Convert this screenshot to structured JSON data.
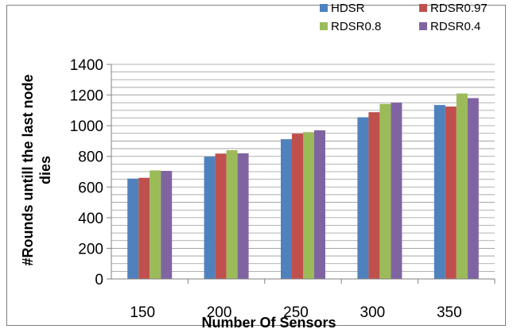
{
  "chart_data": {
    "type": "bar",
    "title": "",
    "xlabel": "Number Of Sensors",
    "ylabel_line1": "#Rounds untill the last node",
    "ylabel_line2": "dies",
    "categories": [
      "150",
      "200",
      "250",
      "300",
      "350"
    ],
    "series": [
      {
        "name": "HDSR",
        "color": "#4f81bd",
        "values": [
          655,
          798,
          912,
          1055,
          1135
        ]
      },
      {
        "name": "RDSR0.97",
        "color": "#c0504d",
        "values": [
          660,
          818,
          948,
          1088,
          1125
        ]
      },
      {
        "name": "RDSR0.8",
        "color": "#9bbb59",
        "values": [
          708,
          840,
          958,
          1142,
          1210
        ]
      },
      {
        "name": "RDSR0.4",
        "color": "#8064a2",
        "values": [
          705,
          820,
          970,
          1150,
          1180
        ]
      }
    ],
    "ylim": [
      0,
      1400
    ],
    "yticks": [
      0,
      200,
      400,
      600,
      800,
      1000,
      1200,
      1400
    ],
    "grid": true,
    "legend_position": "top-right"
  }
}
